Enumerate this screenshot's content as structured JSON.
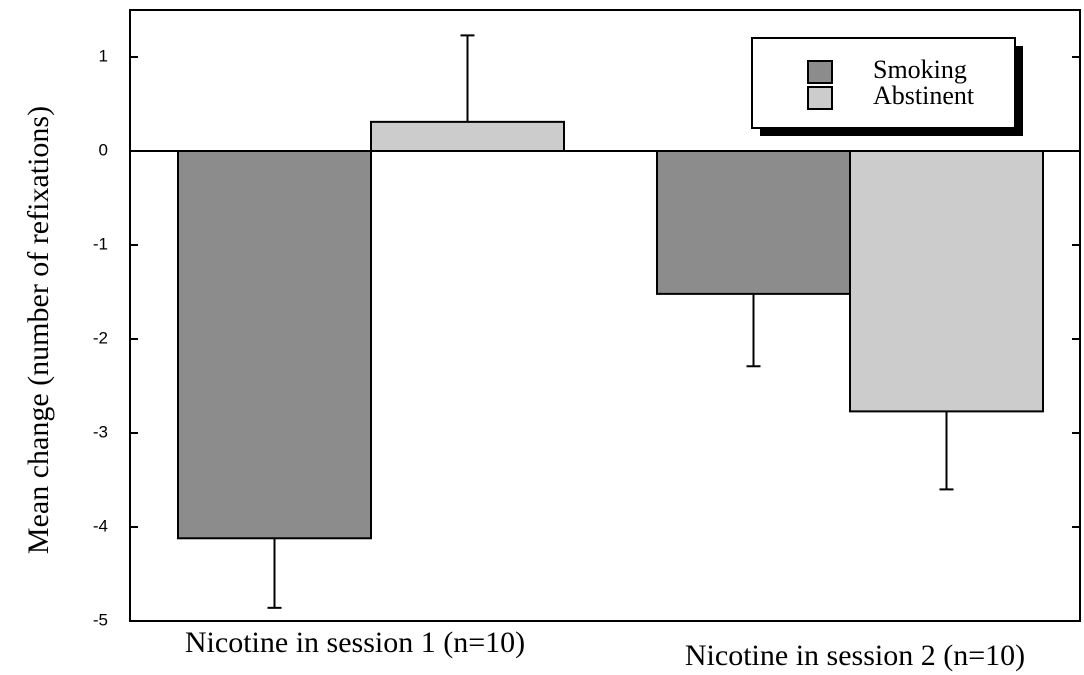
{
  "chart_data": {
    "type": "bar",
    "y_label": "Mean change (number of refixations)",
    "categories": [
      "Nicotine in session 1 (n=10)",
      "Nicotine in session 2 (n=10)"
    ],
    "series": [
      {
        "name": "Smoking",
        "color": "#8c8c8c",
        "values": [
          -4.12,
          -1.52
        ],
        "errors": [
          0.74,
          0.77
        ]
      },
      {
        "name": "Abstinent",
        "color": "#cccccc",
        "values": [
          0.31,
          -2.77
        ],
        "errors": [
          0.92,
          0.83
        ]
      }
    ],
    "ylim": [
      -5,
      1.5
    ],
    "yticks": [
      -5,
      -4,
      -3,
      -2,
      -1,
      0,
      1
    ]
  }
}
